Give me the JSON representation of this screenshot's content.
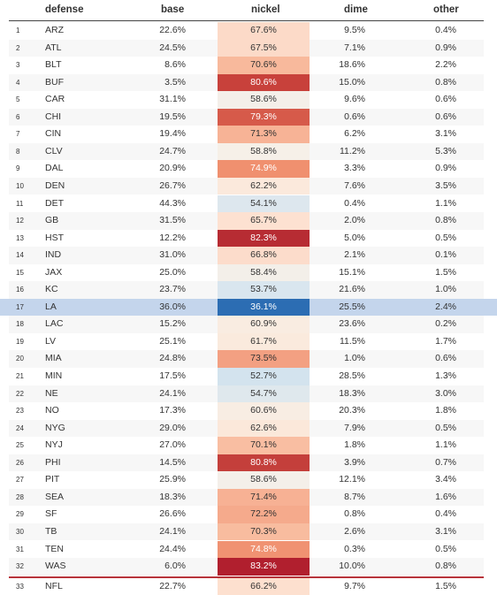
{
  "columns": [
    "defense",
    "base",
    "nickel",
    "dime",
    "other"
  ],
  "rows": [
    {
      "idx": "1",
      "team": "ARZ",
      "base": "22.6%",
      "nickel": "67.6%",
      "dime": "9.5%",
      "other": "0.4%",
      "nickel_color": "#fcdac8",
      "nickel_text": "#333"
    },
    {
      "idx": "2",
      "team": "ATL",
      "base": "24.5%",
      "nickel": "67.5%",
      "dime": "7.1%",
      "other": "0.9%",
      "nickel_color": "#fcdac8",
      "nickel_text": "#333"
    },
    {
      "idx": "3",
      "team": "BLT",
      "base": "8.6%",
      "nickel": "70.6%",
      "dime": "18.6%",
      "other": "2.2%",
      "nickel_color": "#f8b99c",
      "nickel_text": "#333"
    },
    {
      "idx": "4",
      "team": "BUF",
      "base": "3.5%",
      "nickel": "80.6%",
      "dime": "15.0%",
      "other": "0.8%",
      "nickel_color": "#c8413b",
      "nickel_text": "#ffffff"
    },
    {
      "idx": "5",
      "team": "CAR",
      "base": "31.1%",
      "nickel": "58.6%",
      "dime": "9.6%",
      "other": "0.6%",
      "nickel_color": "#f4efe9",
      "nickel_text": "#333"
    },
    {
      "idx": "6",
      "team": "CHI",
      "base": "19.5%",
      "nickel": "79.3%",
      "dime": "0.6%",
      "other": "0.6%",
      "nickel_color": "#d65a4a",
      "nickel_text": "#ffffff"
    },
    {
      "idx": "7",
      "team": "CIN",
      "base": "19.4%",
      "nickel": "71.3%",
      "dime": "6.2%",
      "other": "3.1%",
      "nickel_color": "#f7b396",
      "nickel_text": "#333"
    },
    {
      "idx": "8",
      "team": "CLV",
      "base": "24.7%",
      "nickel": "58.8%",
      "dime": "11.2%",
      "other": "5.3%",
      "nickel_color": "#f6f0e8",
      "nickel_text": "#333"
    },
    {
      "idx": "9",
      "team": "DAL",
      "base": "20.9%",
      "nickel": "74.9%",
      "dime": "3.3%",
      "other": "0.9%",
      "nickel_color": "#f0906f",
      "nickel_text": "#ffffff"
    },
    {
      "idx": "10",
      "team": "DEN",
      "base": "26.7%",
      "nickel": "62.2%",
      "dime": "7.6%",
      "other": "3.5%",
      "nickel_color": "#fbe9dc",
      "nickel_text": "#333"
    },
    {
      "idx": "11",
      "team": "DET",
      "base": "44.3%",
      "nickel": "54.1%",
      "dime": "0.4%",
      "other": "1.1%",
      "nickel_color": "#dde7ee",
      "nickel_text": "#333"
    },
    {
      "idx": "12",
      "team": "GB",
      "base": "31.5%",
      "nickel": "65.7%",
      "dime": "2.0%",
      "other": "0.8%",
      "nickel_color": "#fde1d1",
      "nickel_text": "#333"
    },
    {
      "idx": "13",
      "team": "HST",
      "base": "12.2%",
      "nickel": "82.3%",
      "dime": "5.0%",
      "other": "0.5%",
      "nickel_color": "#b72c33",
      "nickel_text": "#ffffff"
    },
    {
      "idx": "14",
      "team": "IND",
      "base": "31.0%",
      "nickel": "66.8%",
      "dime": "2.1%",
      "other": "0.1%",
      "nickel_color": "#fcdccb",
      "nickel_text": "#333"
    },
    {
      "idx": "15",
      "team": "JAX",
      "base": "25.0%",
      "nickel": "58.4%",
      "dime": "15.1%",
      "other": "1.5%",
      "nickel_color": "#f3efe9",
      "nickel_text": "#333"
    },
    {
      "idx": "16",
      "team": "KC",
      "base": "23.7%",
      "nickel": "53.7%",
      "dime": "21.6%",
      "other": "1.0%",
      "nickel_color": "#d9e6ef",
      "nickel_text": "#333"
    },
    {
      "idx": "17",
      "team": "LA",
      "base": "36.0%",
      "nickel": "36.1%",
      "dime": "25.5%",
      "other": "2.4%",
      "nickel_color": "#2c6db3",
      "nickel_text": "#ffffff"
    },
    {
      "idx": "18",
      "team": "LAC",
      "base": "15.2%",
      "nickel": "60.9%",
      "dime": "23.6%",
      "other": "0.2%",
      "nickel_color": "#f9ece1",
      "nickel_text": "#333"
    },
    {
      "idx": "19",
      "team": "LV",
      "base": "25.1%",
      "nickel": "61.7%",
      "dime": "11.5%",
      "other": "1.7%",
      "nickel_color": "#faeadd",
      "nickel_text": "#333"
    },
    {
      "idx": "20",
      "team": "MIA",
      "base": "24.8%",
      "nickel": "73.5%",
      "dime": "1.0%",
      "other": "0.6%",
      "nickel_color": "#f3a082",
      "nickel_text": "#333"
    },
    {
      "idx": "21",
      "team": "MIN",
      "base": "17.5%",
      "nickel": "52.7%",
      "dime": "28.5%",
      "other": "1.3%",
      "nickel_color": "#d3e3ee",
      "nickel_text": "#333"
    },
    {
      "idx": "22",
      "team": "NE",
      "base": "24.1%",
      "nickel": "54.7%",
      "dime": "18.3%",
      "other": "3.0%",
      "nickel_color": "#dfe8ed",
      "nickel_text": "#333"
    },
    {
      "idx": "23",
      "team": "NO",
      "base": "17.3%",
      "nickel": "60.6%",
      "dime": "20.3%",
      "other": "1.8%",
      "nickel_color": "#f8ede3",
      "nickel_text": "#333"
    },
    {
      "idx": "24",
      "team": "NYG",
      "base": "29.0%",
      "nickel": "62.6%",
      "dime": "7.9%",
      "other": "0.5%",
      "nickel_color": "#fbe8da",
      "nickel_text": "#333"
    },
    {
      "idx": "25",
      "team": "NYJ",
      "base": "27.0%",
      "nickel": "70.1%",
      "dime": "1.8%",
      "other": "1.1%",
      "nickel_color": "#f9bea2",
      "nickel_text": "#333"
    },
    {
      "idx": "26",
      "team": "PHI",
      "base": "14.5%",
      "nickel": "80.8%",
      "dime": "3.9%",
      "other": "0.7%",
      "nickel_color": "#c43f3b",
      "nickel_text": "#ffffff"
    },
    {
      "idx": "27",
      "team": "PIT",
      "base": "25.9%",
      "nickel": "58.6%",
      "dime": "12.1%",
      "other": "3.4%",
      "nickel_color": "#f4efe9",
      "nickel_text": "#333"
    },
    {
      "idx": "28",
      "team": "SEA",
      "base": "18.3%",
      "nickel": "71.4%",
      "dime": "8.7%",
      "other": "1.6%",
      "nickel_color": "#f7b194",
      "nickel_text": "#333"
    },
    {
      "idx": "29",
      "team": "SF",
      "base": "26.6%",
      "nickel": "72.2%",
      "dime": "0.8%",
      "other": "0.4%",
      "nickel_color": "#f5aa8c",
      "nickel_text": "#333"
    },
    {
      "idx": "30",
      "team": "TB",
      "base": "24.1%",
      "nickel": "70.3%",
      "dime": "2.6%",
      "other": "3.1%",
      "nickel_color": "#f8bc9f",
      "nickel_text": "#333"
    },
    {
      "idx": "31",
      "team": "TEN",
      "base": "24.4%",
      "nickel": "74.8%",
      "dime": "0.3%",
      "other": "0.5%",
      "nickel_color": "#f09272",
      "nickel_text": "#ffffff"
    },
    {
      "idx": "32",
      "team": "WAS",
      "base": "6.0%",
      "nickel": "83.2%",
      "dime": "10.0%",
      "other": "0.8%",
      "nickel_color": "#b11f2e",
      "nickel_text": "#ffffff"
    }
  ],
  "total": {
    "idx": "33",
    "team": "NFL",
    "base": "22.7%",
    "nickel": "66.2%",
    "dime": "9.7%",
    "other": "1.5%",
    "nickel_color": "#fde0cf",
    "nickel_text": "#333"
  },
  "highlight_team": "LA",
  "colors": {
    "highlight_row": "#c4d5ec",
    "nfl_divider": "#b7343b",
    "header_rule": "#444444"
  }
}
